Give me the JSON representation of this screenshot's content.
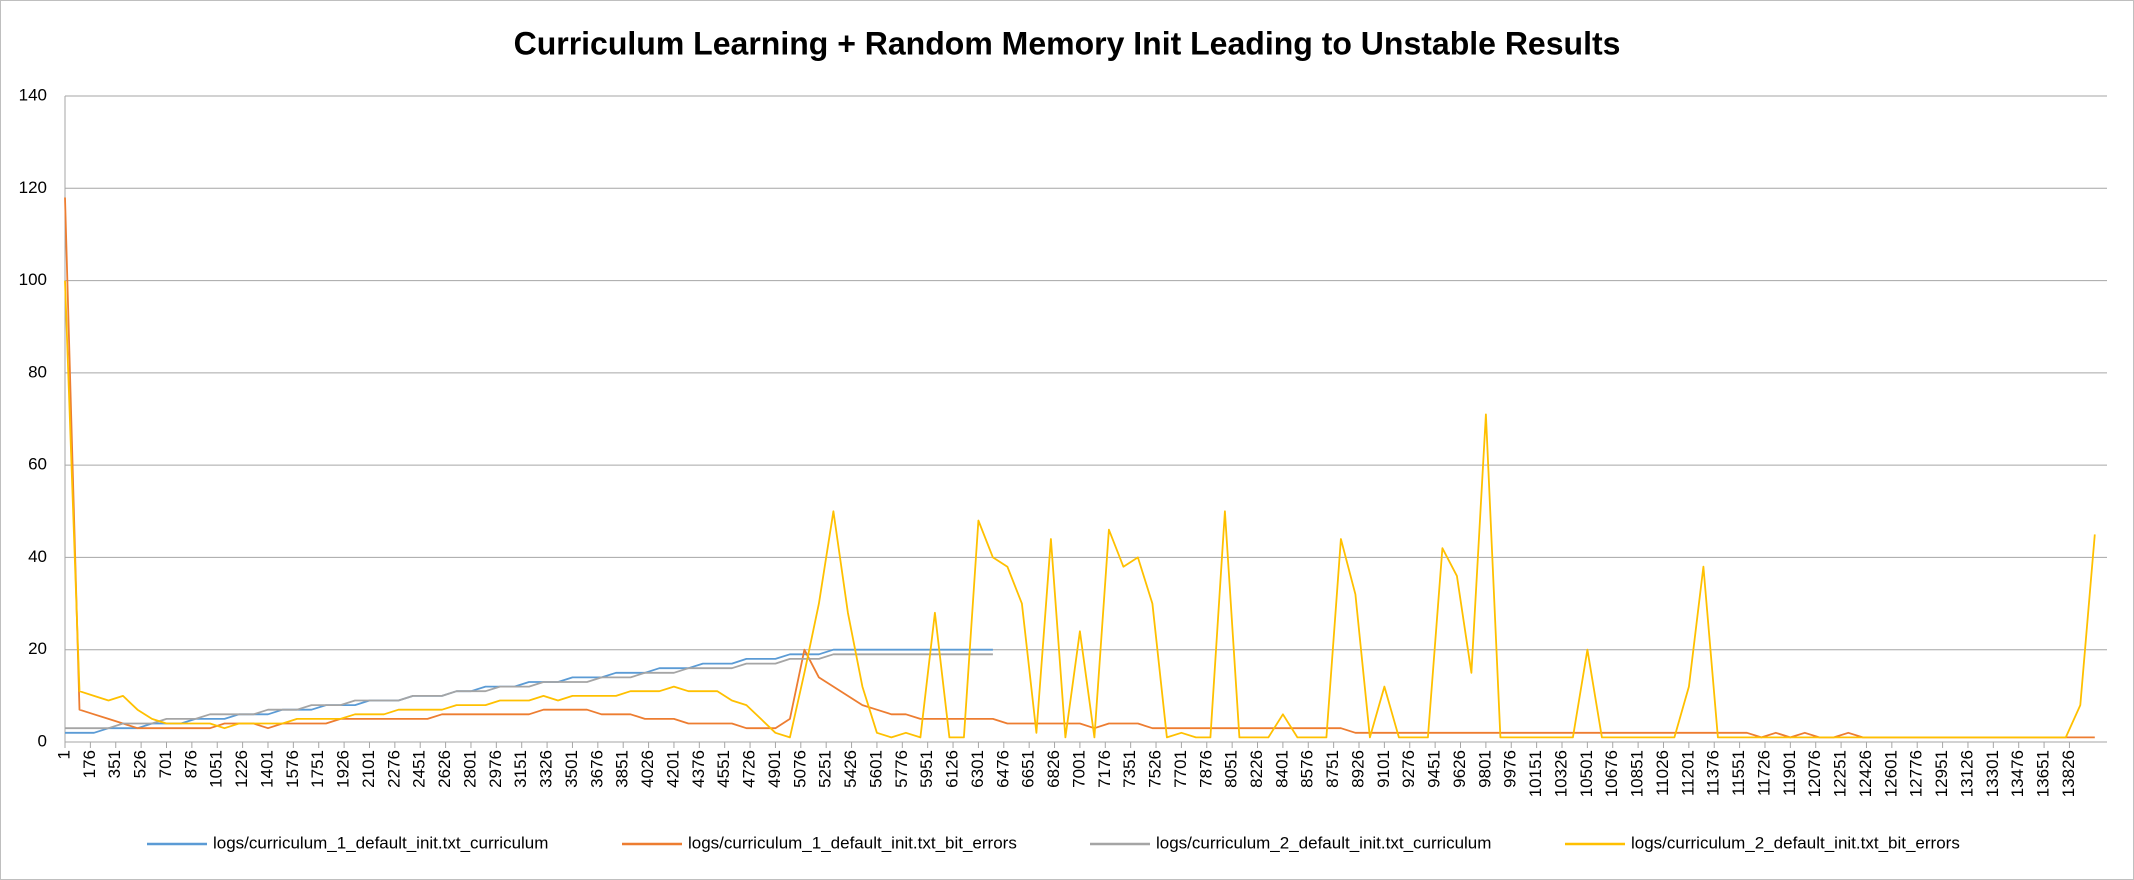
{
  "chart_data": {
    "type": "line",
    "title": "Curriculum Learning + Random Memory Init Leading to Unstable Results",
    "x": [
      1,
      101,
      201,
      301,
      401,
      501,
      601,
      701,
      801,
      901,
      1001,
      1101,
      1201,
      1301,
      1401,
      1501,
      1601,
      1701,
      1801,
      1901,
      2001,
      2101,
      2201,
      2301,
      2401,
      2501,
      2601,
      2701,
      2801,
      2901,
      3001,
      3101,
      3201,
      3301,
      3401,
      3501,
      3601,
      3701,
      3801,
      3901,
      4001,
      4101,
      4201,
      4301,
      4401,
      4501,
      4601,
      4701,
      4801,
      4901,
      5001,
      5101,
      5201,
      5301,
      5401,
      5501,
      5601,
      5701,
      5801,
      5901,
      6001,
      6101,
      6201,
      6301,
      6401,
      6501,
      6601,
      6701,
      6801,
      6901,
      7001,
      7101,
      7201,
      7301,
      7401,
      7501,
      7601,
      7701,
      7801,
      7901,
      8001,
      8101,
      8201,
      8301,
      8401,
      8501,
      8601,
      8701,
      8801,
      8901,
      9001,
      9101,
      9201,
      9301,
      9401,
      9501,
      9601,
      9701,
      9801,
      9901,
      10001,
      10101,
      10201,
      10301,
      10401,
      10501,
      10601,
      10701,
      10801,
      10901,
      11001,
      11101,
      11201,
      11301,
      11401,
      11501,
      11601,
      11701,
      11801,
      11901,
      12001,
      12101,
      12201,
      12301,
      12401,
      12501,
      12601,
      12701,
      12801,
      12901,
      13001,
      13101,
      13201,
      13301,
      13401,
      13501,
      13601,
      13701,
      13801,
      13901,
      14001
    ],
    "xlim": [
      1,
      14085
    ],
    "xticks": [
      1,
      176,
      351,
      526,
      701,
      876,
      1051,
      1226,
      1401,
      1576,
      1751,
      1926,
      2101,
      2276,
      2451,
      2626,
      2801,
      2976,
      3151,
      3326,
      3501,
      3676,
      3851,
      4026,
      4201,
      4376,
      4551,
      4726,
      4901,
      5076,
      5251,
      5426,
      5601,
      5776,
      5951,
      6126,
      6301,
      6476,
      6651,
      6826,
      7001,
      7176,
      7351,
      7526,
      7701,
      7876,
      8051,
      8226,
      8401,
      8576,
      8751,
      8926,
      9101,
      9276,
      9451,
      9626,
      9801,
      9976,
      10151,
      10326,
      10501,
      10676,
      10851,
      11026,
      11201,
      11376,
      11551,
      11726,
      11901,
      12076,
      12251,
      12426,
      12601,
      12776,
      12951,
      13126,
      13301,
      13476,
      13651,
      13826
    ],
    "ylim": [
      0,
      140
    ],
    "yticks": [
      0,
      20,
      40,
      60,
      80,
      100,
      120,
      140
    ],
    "grid": true,
    "legend": "bottom",
    "series": [
      {
        "name": "logs/curriculum_1_default_init.txt_curriculum",
        "color": "#5b9bd5",
        "values": [
          2,
          2,
          2,
          3,
          3,
          3,
          4,
          4,
          4,
          5,
          5,
          5,
          6,
          6,
          6,
          7,
          7,
          7,
          8,
          8,
          8,
          9,
          9,
          9,
          10,
          10,
          10,
          11,
          11,
          12,
          12,
          12,
          13,
          13,
          13,
          14,
          14,
          14,
          15,
          15,
          15,
          16,
          16,
          16,
          17,
          17,
          17,
          18,
          18,
          18,
          19,
          19,
          19,
          20,
          20,
          20,
          20,
          20,
          20,
          20,
          20,
          20,
          20,
          20,
          20,
          null,
          null,
          null,
          null,
          null,
          null,
          null,
          null,
          null,
          null,
          null,
          null,
          null,
          null,
          null,
          null,
          null,
          null,
          null,
          null,
          null,
          null,
          null,
          null,
          null,
          null,
          null,
          null,
          null,
          null,
          null,
          null,
          null,
          null,
          null,
          null,
          null,
          null,
          null,
          null,
          null,
          null,
          null,
          null,
          null,
          null,
          null,
          null,
          null,
          null,
          null,
          null,
          null,
          null,
          null,
          null,
          null,
          null,
          null,
          null,
          null,
          null,
          null,
          null,
          null,
          null,
          null,
          null,
          null,
          null,
          null,
          null,
          null,
          null,
          null,
          null
        ]
      },
      {
        "name": "logs/curriculum_1_default_init.txt_bit_errors",
        "color": "#ed7d31",
        "values": [
          118,
          7,
          6,
          5,
          4,
          3,
          3,
          3,
          3,
          3,
          3,
          4,
          4,
          4,
          3,
          4,
          4,
          4,
          4,
          5,
          5,
          5,
          5,
          5,
          5,
          5,
          6,
          6,
          6,
          6,
          6,
          6,
          6,
          7,
          7,
          7,
          7,
          6,
          6,
          6,
          5,
          5,
          5,
          4,
          4,
          4,
          4,
          3,
          3,
          3,
          5,
          20,
          14,
          12,
          10,
          8,
          7,
          6,
          6,
          5,
          5,
          5,
          5,
          5,
          5,
          4,
          4,
          4,
          4,
          4,
          4,
          3,
          4,
          4,
          4,
          3,
          3,
          3,
          3,
          3,
          3,
          3,
          3,
          3,
          3,
          3,
          3,
          3,
          3,
          2,
          2,
          2,
          2,
          2,
          2,
          2,
          2,
          2,
          2,
          2,
          2,
          2,
          2,
          2,
          2,
          2,
          2,
          2,
          2,
          2,
          2,
          2,
          2,
          2,
          2,
          2,
          2,
          1,
          2,
          1,
          2,
          1,
          1,
          2,
          1,
          1,
          1,
          1,
          1,
          1,
          1,
          1,
          1,
          1,
          1,
          1,
          1,
          1,
          1,
          1,
          1
        ]
      },
      {
        "name": "logs/curriculum_2_default_init.txt_curriculum",
        "color": "#a5a5a5",
        "values": [
          3,
          3,
          3,
          3,
          4,
          4,
          4,
          5,
          5,
          5,
          6,
          6,
          6,
          6,
          7,
          7,
          7,
          8,
          8,
          8,
          9,
          9,
          9,
          9,
          10,
          10,
          10,
          11,
          11,
          11,
          12,
          12,
          12,
          13,
          13,
          13,
          13,
          14,
          14,
          14,
          15,
          15,
          15,
          16,
          16,
          16,
          16,
          17,
          17,
          17,
          18,
          18,
          18,
          19,
          19,
          19,
          19,
          19,
          19,
          19,
          19,
          19,
          19,
          19,
          19,
          null,
          null,
          null,
          null,
          null,
          null,
          null,
          null,
          null,
          null,
          null,
          null,
          null,
          null,
          null,
          null,
          null,
          null,
          null,
          null,
          null,
          null,
          null,
          null,
          null,
          null,
          null,
          null,
          null,
          null,
          null,
          null,
          null,
          null,
          null,
          null,
          null,
          null,
          null,
          null,
          null,
          null,
          null,
          null,
          null,
          null,
          null,
          null,
          null,
          null,
          null,
          null,
          null,
          null,
          null,
          null,
          null,
          null,
          null,
          null,
          null,
          null,
          null,
          null,
          null,
          null,
          null,
          null,
          null,
          null,
          null,
          null,
          null,
          null,
          null,
          null
        ]
      },
      {
        "name": "logs/curriculum_2_default_init.txt_bit_errors",
        "color": "#ffc000",
        "values": [
          100,
          11,
          10,
          9,
          10,
          7,
          5,
          4,
          4,
          4,
          4,
          3,
          4,
          4,
          4,
          4,
          5,
          5,
          5,
          5,
          6,
          6,
          6,
          7,
          7,
          7,
          7,
          8,
          8,
          8,
          9,
          9,
          9,
          10,
          9,
          10,
          10,
          10,
          10,
          11,
          11,
          11,
          12,
          11,
          11,
          11,
          9,
          8,
          5,
          2,
          1,
          15,
          30,
          50,
          28,
          12,
          2,
          1,
          2,
          1,
          28,
          1,
          1,
          48,
          40,
          38,
          30,
          2,
          44,
          1,
          24,
          1,
          46,
          38,
          40,
          30,
          1,
          2,
          1,
          1,
          50,
          1,
          1,
          1,
          6,
          1,
          1,
          1,
          44,
          32,
          1,
          12,
          1,
          1,
          1,
          42,
          36,
          15,
          71,
          1,
          1,
          1,
          1,
          1,
          1,
          20,
          1,
          1,
          1,
          1,
          1,
          1,
          12,
          38,
          1,
          1,
          1,
          1,
          1,
          1,
          1,
          1,
          1,
          1,
          1,
          1,
          1,
          1,
          1,
          1,
          1,
          1,
          1,
          1,
          1,
          1,
          1,
          1,
          1,
          8,
          45
        ]
      }
    ]
  }
}
